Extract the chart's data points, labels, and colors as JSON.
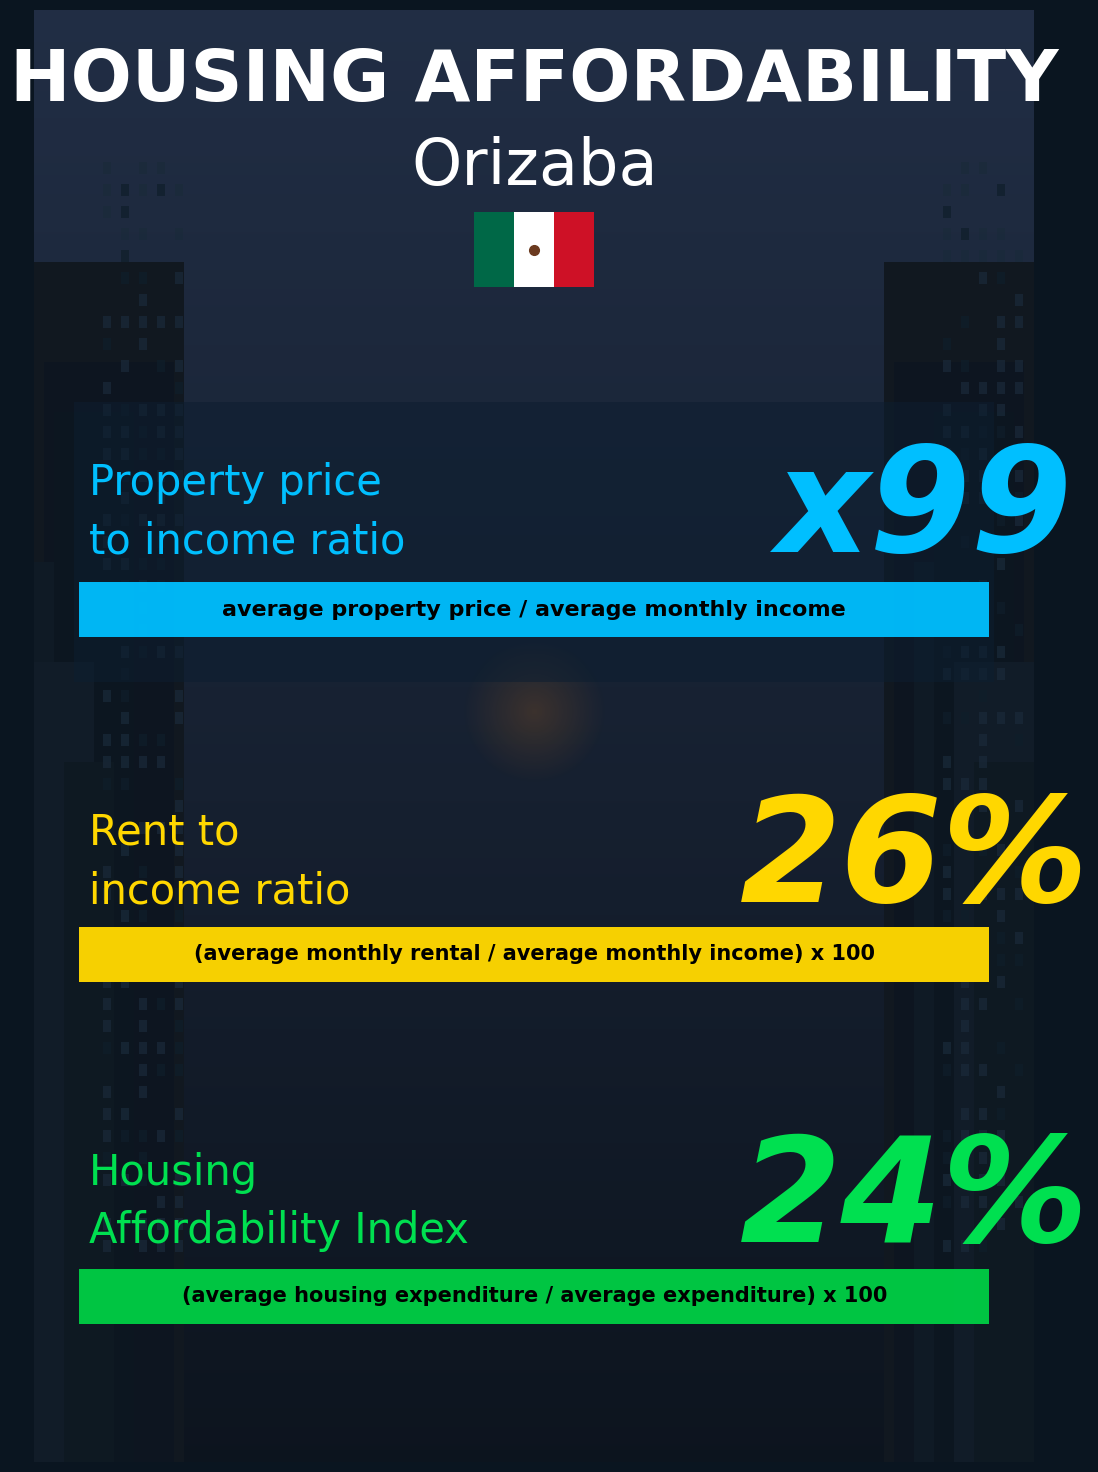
{
  "title_line1": "HOUSING AFFORDABILITY",
  "title_line2": "Orizaba",
  "bg_color": "#0a1520",
  "title1_color": "#ffffff",
  "title2_color": "#ffffff",
  "section1_label": "Property price\nto income ratio",
  "section1_value": "x99",
  "section1_label_color": "#00bfff",
  "section1_value_color": "#00bfff",
  "section1_band_text": "average property price / average monthly income",
  "section1_band_bg": "#00bfff",
  "section1_band_text_color": "#000000",
  "section2_label": "Rent to\nincome ratio",
  "section2_value": "26%",
  "section2_label_color": "#ffd700",
  "section2_value_color": "#ffd700",
  "section2_band_text": "(average monthly rental / average monthly income) x 100",
  "section2_band_bg": "#ffd700",
  "section2_band_text_color": "#000000",
  "section3_label": "Housing\nAffordability Index",
  "section3_value": "24%",
  "section3_label_color": "#00e050",
  "section3_value_color": "#00e050",
  "section3_band_text": "(average housing expenditure / average expenditure) x 100",
  "section3_band_bg": "#00cc44",
  "section3_band_text_color": "#000000",
  "flag_green": "#006847",
  "flag_white": "#ffffff",
  "flag_red": "#ce1126"
}
